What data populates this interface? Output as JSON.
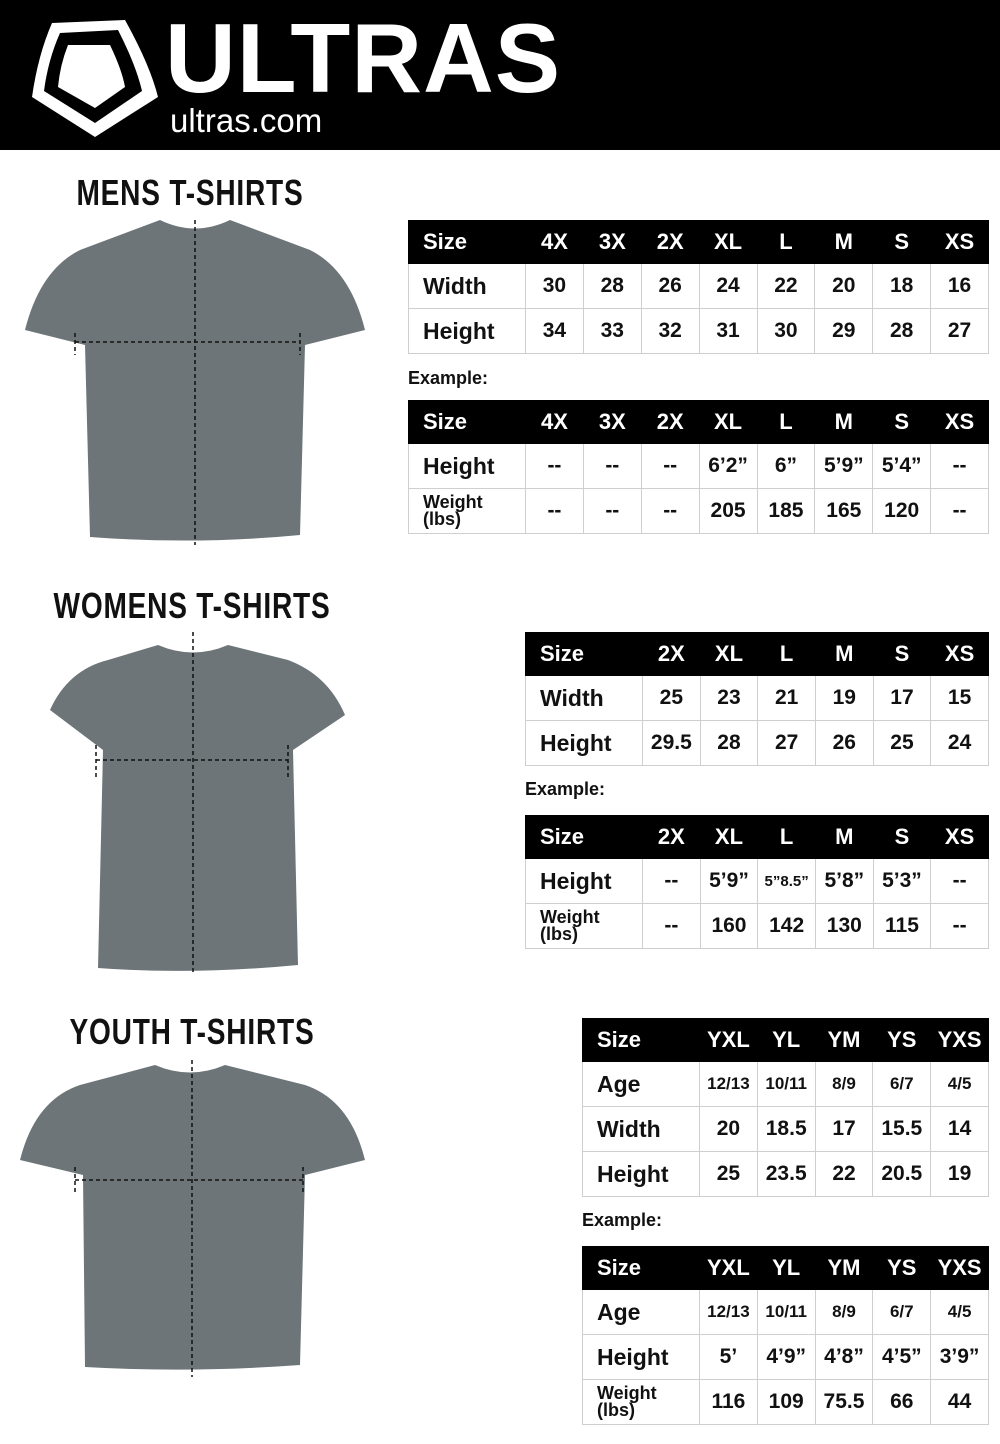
{
  "header": {
    "brand": "ULTRAS",
    "site": "ultras.com"
  },
  "sections": [
    {
      "title": "MENS T-SHIRTS",
      "example_label": "Example:",
      "sizes": {
        "header": [
          "Size",
          "4X",
          "3X",
          "2X",
          "XL",
          "L",
          "M",
          "S",
          "XS"
        ],
        "rows": [
          [
            "Width",
            "30",
            "28",
            "26",
            "24",
            "22",
            "20",
            "18",
            "16"
          ],
          [
            "Height",
            "34",
            "33",
            "32",
            "31",
            "30",
            "29",
            "28",
            "27"
          ]
        ]
      },
      "example": {
        "header": [
          "Size",
          "4X",
          "3X",
          "2X",
          "XL",
          "L",
          "M",
          "S",
          "XS"
        ],
        "rows": [
          [
            "Height",
            "--",
            "--",
            "--",
            "6’2”",
            "6”",
            "5’9”",
            "5’4”",
            "--"
          ],
          [
            "Weight (lbs)",
            "--",
            "--",
            "--",
            "205",
            "185",
            "165",
            "120",
            "--"
          ]
        ]
      }
    },
    {
      "title": "WOMENS T-SHIRTS",
      "example_label": "Example:",
      "sizes": {
        "header": [
          "Size",
          "2X",
          "XL",
          "L",
          "M",
          "S",
          "XS"
        ],
        "rows": [
          [
            "Width",
            "25",
            "23",
            "21",
            "19",
            "17",
            "15"
          ],
          [
            "Height",
            "29.5",
            "28",
            "27",
            "26",
            "25",
            "24"
          ]
        ]
      },
      "example": {
        "header": [
          "Size",
          "2X",
          "XL",
          "L",
          "M",
          "S",
          "XS"
        ],
        "rows": [
          [
            "Height",
            "--",
            "5’9”",
            "5”8.5”",
            "5’8”",
            "5’3”",
            "--"
          ],
          [
            "Weight (lbs)",
            "--",
            "160",
            "142",
            "130",
            "115",
            "--"
          ]
        ]
      }
    },
    {
      "title": "YOUTH T-SHIRTS",
      "example_label": "Example:",
      "sizes": {
        "header": [
          "Size",
          "YXL",
          "YL",
          "YM",
          "YS",
          "YXS"
        ],
        "rows": [
          [
            "Age",
            "12/13",
            "10/11",
            "8/9",
            "6/7",
            "4/5"
          ],
          [
            "Width",
            "20",
            "18.5",
            "17",
            "15.5",
            "14"
          ],
          [
            "Height",
            "25",
            "23.5",
            "22",
            "20.5",
            "19"
          ]
        ]
      },
      "example": {
        "header": [
          "Size",
          "YXL",
          "YL",
          "YM",
          "YS",
          "YXS"
        ],
        "rows": [
          [
            "Age",
            "12/13",
            "10/11",
            "8/9",
            "6/7",
            "4/5"
          ],
          [
            "Height",
            "5’",
            "4’9”",
            "4’8”",
            "4’5”",
            "3’9”"
          ],
          [
            "Weight (lbs)",
            "116",
            "109",
            "75.5",
            "66",
            "44"
          ]
        ]
      }
    }
  ],
  "colors": {
    "shirt": "#6d7579",
    "header_bg": "#000000"
  }
}
